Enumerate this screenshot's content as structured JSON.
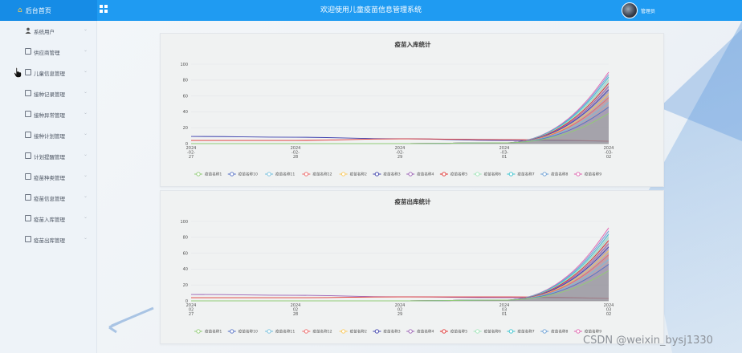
{
  "header": {
    "brand_label": "后台首页",
    "title": "欢迎使用儿童疫苗信息管理系统",
    "user_label": "管理员"
  },
  "sidebar": {
    "items": [
      {
        "label": "系统用户",
        "icon": "user-icon"
      },
      {
        "label": "供应商管理",
        "icon": "document-icon"
      },
      {
        "label": "儿童信息管理",
        "icon": "document-icon"
      },
      {
        "label": "接种记录管理",
        "icon": "document-icon"
      },
      {
        "label": "接种异常管理",
        "icon": "document-icon"
      },
      {
        "label": "接种计划管理",
        "icon": "document-icon"
      },
      {
        "label": "计划提醒管理",
        "icon": "document-icon"
      },
      {
        "label": "疫苗种类管理",
        "icon": "document-icon"
      },
      {
        "label": "疫苗信息管理",
        "icon": "document-icon"
      },
      {
        "label": "疫苗入库管理",
        "icon": "document-icon"
      },
      {
        "label": "疫苗出库管理",
        "icon": "document-icon"
      }
    ]
  },
  "chart_data": [
    {
      "type": "area",
      "title": "疫苗入库统计",
      "ylim": [
        0,
        100
      ],
      "yticks": [
        0,
        20,
        40,
        60,
        80,
        100
      ],
      "xticks": [
        [
          "2024",
          "-02-",
          "27"
        ],
        [
          "2024",
          "-02-",
          "28"
        ],
        [
          "2024",
          "-02-",
          "29"
        ],
        [
          "2024",
          "-03-",
          "01"
        ],
        [
          "2024",
          "-03-",
          "02"
        ]
      ],
      "series": [
        {
          "name": "疫苗名称1",
          "color": "#91cc75",
          "values": [
            0,
            0,
            0,
            1,
            38
          ]
        },
        {
          "name": "疫苗名称10",
          "color": "#5470c6",
          "values": [
            0,
            0,
            0,
            1,
            46
          ]
        },
        {
          "name": "疫苗名称11",
          "color": "#73c0de",
          "values": [
            0,
            0,
            0,
            1,
            52
          ]
        },
        {
          "name": "疫苗名称12",
          "color": "#ee6666",
          "values": [
            0,
            0,
            0,
            1,
            58
          ]
        },
        {
          "name": "疫苗名称2",
          "color": "#fac858",
          "values": [
            0,
            0,
            0,
            1,
            63
          ]
        },
        {
          "name": "疫苗名称3",
          "color": "#3b3eac",
          "values": [
            0,
            0,
            0,
            1,
            68
          ]
        },
        {
          "name": "疫苗名称4",
          "color": "#9a60b4",
          "values": [
            0,
            0,
            0,
            1,
            72
          ]
        },
        {
          "name": "疫苗名称5",
          "color": "#e0312f",
          "values": [
            0,
            0,
            0,
            1,
            76
          ]
        },
        {
          "name": "疫苗名称6",
          "color": "#9fe6b8",
          "values": [
            0,
            0,
            0,
            1,
            80
          ]
        },
        {
          "name": "疫苗名称7",
          "color": "#37c3cf",
          "values": [
            0,
            0,
            0,
            1,
            84
          ]
        },
        {
          "name": "疫苗名称8",
          "color": "#6a9fd6",
          "values": [
            0,
            0,
            0,
            1,
            87
          ]
        },
        {
          "name": "疫苗名称9",
          "color": "#e062ae",
          "values": [
            0,
            0,
            0,
            1,
            90
          ]
        }
      ],
      "flat_lines": [
        {
          "color": "#3b3eac",
          "values": [
            9,
            8,
            6,
            4,
            3
          ]
        },
        {
          "color": "#e0312f",
          "values": [
            4,
            4,
            6,
            5,
            3
          ]
        }
      ]
    },
    {
      "type": "area",
      "title": "疫苗出库统计",
      "ylim": [
        0,
        100
      ],
      "yticks": [
        0,
        20,
        40,
        60,
        80,
        100
      ],
      "xticks": [
        [
          "2024",
          "02",
          "27"
        ],
        [
          "2024",
          "02",
          "28"
        ],
        [
          "2024",
          "02",
          "29"
        ],
        [
          "2024",
          "03",
          "01"
        ],
        [
          "2024",
          "03",
          "02"
        ]
      ],
      "series": [
        {
          "name": "疫苗名称1",
          "color": "#91cc75",
          "values": [
            0,
            0,
            0,
            1,
            38
          ]
        },
        {
          "name": "疫苗名称10",
          "color": "#5470c6",
          "values": [
            0,
            0,
            0,
            1,
            46
          ]
        },
        {
          "name": "疫苗名称11",
          "color": "#73c0de",
          "values": [
            0,
            0,
            0,
            1,
            52
          ]
        },
        {
          "name": "疫苗名称12",
          "color": "#ee6666",
          "values": [
            0,
            0,
            0,
            1,
            58
          ]
        },
        {
          "name": "疫苗名称2",
          "color": "#fac858",
          "values": [
            0,
            0,
            0,
            1,
            63
          ]
        },
        {
          "name": "疫苗名称3",
          "color": "#3b3eac",
          "values": [
            0,
            0,
            0,
            1,
            68
          ]
        },
        {
          "name": "疫苗名称4",
          "color": "#9a60b4",
          "values": [
            0,
            0,
            0,
            1,
            72
          ]
        },
        {
          "name": "疫苗名称5",
          "color": "#e0312f",
          "values": [
            0,
            0,
            0,
            1,
            76
          ]
        },
        {
          "name": "疫苗名称6",
          "color": "#9fe6b8",
          "values": [
            0,
            0,
            0,
            1,
            80
          ]
        },
        {
          "name": "疫苗名称7",
          "color": "#37c3cf",
          "values": [
            0,
            0,
            0,
            1,
            84
          ]
        },
        {
          "name": "疫苗名称8",
          "color": "#6a9fd6",
          "values": [
            0,
            0,
            0,
            1,
            88
          ]
        },
        {
          "name": "疫苗名称9",
          "color": "#e062ae",
          "values": [
            0,
            0,
            0,
            1,
            92
          ]
        }
      ],
      "flat_lines": [
        {
          "color": "#9a60b4",
          "values": [
            8,
            7,
            5,
            4,
            3
          ]
        },
        {
          "color": "#e0312f",
          "values": [
            4,
            4,
            5,
            5,
            3
          ]
        }
      ]
    }
  ],
  "watermark": "CSDN @weixin_bysj1330"
}
